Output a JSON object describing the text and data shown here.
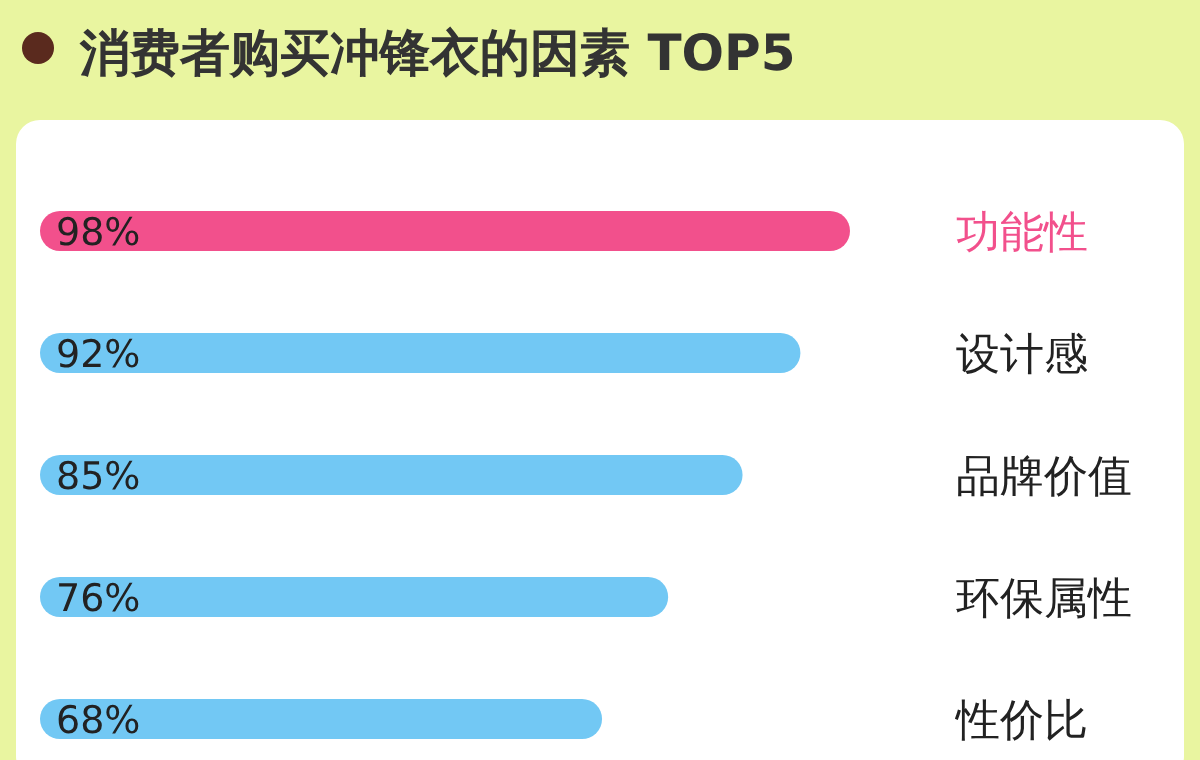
{
  "chart_data": {
    "type": "bar",
    "orientation": "horizontal",
    "title": "消费者购买冲锋衣的因素 TOP5",
    "categories": [
      "功能性",
      "设计感",
      "品牌价值",
      "环保属性",
      "性价比"
    ],
    "values": [
      98,
      92,
      85,
      76,
      68
    ],
    "colors": [
      "#f2508c",
      "#72c8f4",
      "#72c8f4",
      "#72c8f4",
      "#72c8f4"
    ],
    "value_labels": [
      "98%",
      "92%",
      "85%",
      "76%",
      "68%"
    ]
  }
}
